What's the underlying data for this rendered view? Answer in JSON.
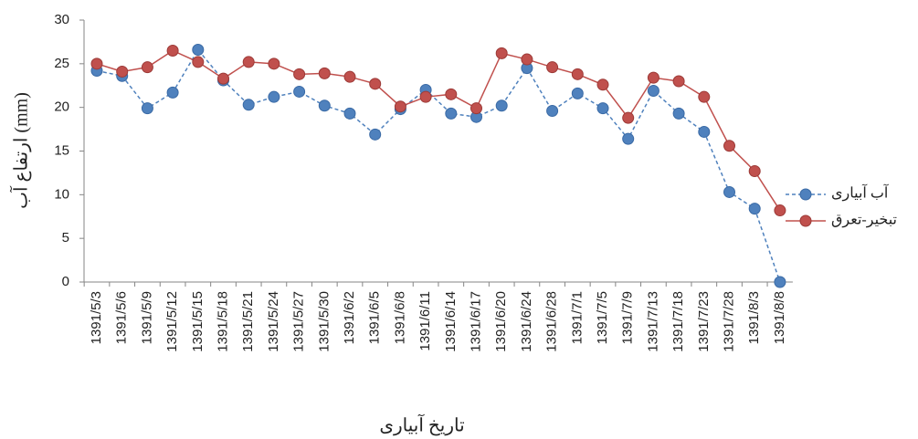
{
  "chart_data": {
    "type": "line",
    "y_label": "ارتفاع آب (mm)",
    "x_label": "تاریخ آبیاری",
    "categories": [
      "1391/5/3",
      "1391/5/6",
      "1391/5/9",
      "1391/5/12",
      "1391/5/15",
      "1391/5/18",
      "1391/5/21",
      "1391/5/24",
      "1391/5/27",
      "1391/5/30",
      "1391/6/2",
      "1391/6/5",
      "1391/6/8",
      "1391/6/11",
      "1391/6/14",
      "1391/6/17",
      "1391/6/20",
      "1391/6/24",
      "1391/6/28",
      "1391/7/1",
      "1391/7/5",
      "1391/7/9",
      "1391/7/13",
      "1391/7/18",
      "1391/7/23",
      "1391/7/28",
      "1391/8/3",
      "1391/8/8"
    ],
    "series": [
      {
        "name": "آب آبیاری",
        "color": "#4f81bd",
        "dashed": true,
        "values": [
          24.2,
          23.6,
          19.9,
          21.7,
          26.6,
          23.1,
          20.3,
          21.2,
          21.8,
          20.2,
          19.3,
          16.9,
          19.8,
          22.0,
          19.3,
          18.9,
          20.2,
          24.5,
          19.6,
          21.6,
          19.9,
          16.4,
          21.9,
          19.3,
          17.2,
          10.3,
          8.4,
          0
        ]
      },
      {
        "name": "تبخیر-تعرق",
        "color": "#c0504d",
        "dashed": false,
        "values": [
          25.0,
          24.1,
          24.6,
          26.5,
          25.2,
          23.3,
          25.2,
          25.0,
          23.8,
          23.9,
          23.5,
          22.7,
          20.1,
          21.2,
          21.5,
          19.9,
          26.2,
          25.5,
          24.6,
          23.8,
          22.6,
          18.8,
          23.4,
          23.0,
          21.2,
          15.6,
          12.7,
          8.2
        ]
      }
    ],
    "ylim": [
      0,
      30
    ],
    "yticks": [
      0,
      5,
      10,
      15,
      20,
      25,
      30
    ],
    "legend": "right"
  }
}
